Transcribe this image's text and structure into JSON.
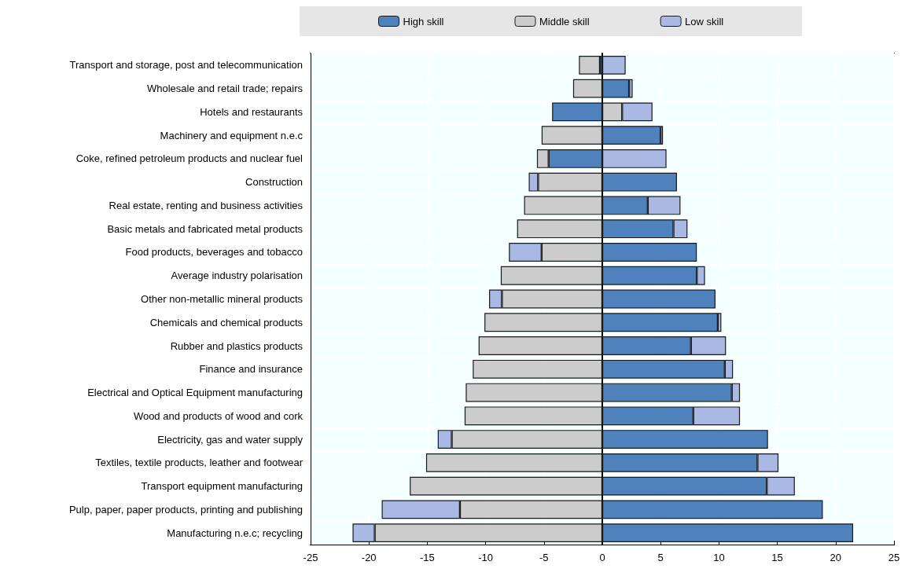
{
  "chart_data": {
    "type": "bar",
    "orientation": "horizontal",
    "stacked": true,
    "legend": "top",
    "grid": true,
    "categories": [
      "Transport and storage, post and telecommunication",
      "Wholesale and retail trade; repairs",
      "Hotels and restaurants",
      "Machinery and equipment n.e.c",
      "Coke, refined petroleum products and nuclear fuel",
      "Construction",
      "Real estate, renting and business activities",
      "Basic metals and fabricated metal products",
      "Food products, beverages and tobacco",
      "Average industry polarisation",
      "Other non-metallic mineral products",
      "Chemicals and chemical products",
      "Rubber and plastics products",
      "Finance and insurance",
      "Electrical and Optical Equipment manufacturing",
      "Wood and products of wood and cork",
      "Electricity, gas and water supply",
      "Textiles, textile products, leather and footwear",
      "Transport equipment manufacturing",
      "Pulp, paper, paper products, printing and publishing",
      "Manufacturing n.e.c; recycling"
    ],
    "series": [
      {
        "name": "High skill",
        "color": "#4f81bd",
        "values": [
          -0.2,
          2.3,
          -4.3,
          5.0,
          -4.6,
          6.4,
          3.9,
          6.1,
          8.1,
          8.1,
          9.7,
          9.9,
          7.6,
          10.5,
          11.1,
          7.8,
          14.2,
          13.3,
          14.1,
          18.9,
          21.5
        ]
      },
      {
        "name": "Middle skill",
        "color": "#cccccc",
        "values": [
          -1.8,
          -2.5,
          1.7,
          -5.2,
          -1.0,
          -5.5,
          -6.7,
          -7.3,
          -5.2,
          -8.7,
          -8.6,
          -10.1,
          -10.6,
          -11.1,
          -11.7,
          -11.8,
          -12.9,
          -15.1,
          -16.5,
          -12.2,
          -19.5
        ]
      },
      {
        "name": "Low skill",
        "color": "#a9b9e3",
        "values": [
          2.0,
          0.3,
          2.6,
          0.2,
          5.5,
          -0.8,
          2.8,
          1.2,
          -2.8,
          0.7,
          -1.1,
          0.3,
          3.0,
          0.7,
          0.7,
          4.0,
          -1.2,
          1.8,
          2.4,
          -6.7,
          -1.9
        ]
      }
    ],
    "xlim": [
      -25,
      25
    ],
    "xticks": [
      -25,
      -20,
      -15,
      -10,
      -5,
      0,
      5,
      10,
      15,
      20,
      25
    ]
  }
}
